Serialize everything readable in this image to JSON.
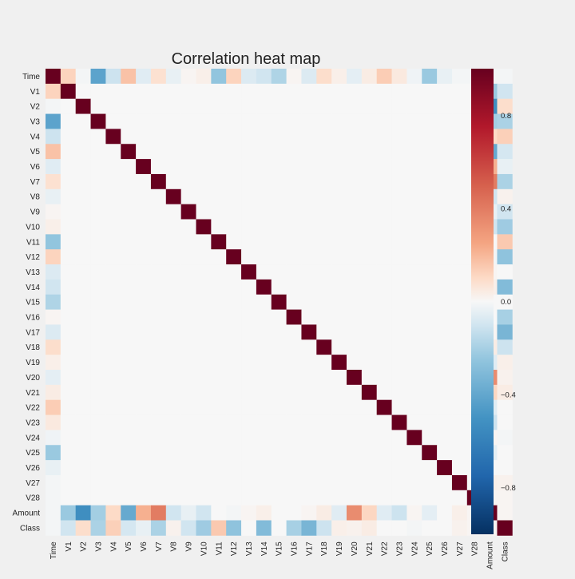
{
  "chart_data": {
    "type": "heatmap",
    "title": "Correlation heat map",
    "labels": [
      "Time",
      "V1",
      "V2",
      "V3",
      "V4",
      "V5",
      "V6",
      "V7",
      "V8",
      "V9",
      "V10",
      "V11",
      "V12",
      "V13",
      "V14",
      "V15",
      "V16",
      "V17",
      "V18",
      "V19",
      "V20",
      "V21",
      "V22",
      "V23",
      "V24",
      "V25",
      "V26",
      "V27",
      "V28",
      "Amount",
      "Class"
    ],
    "colorbar": {
      "range": [
        -1.0,
        1.0
      ],
      "ticks": [
        "0.8",
        "0.4",
        "0.0",
        "−0.4",
        "−0.8"
      ],
      "tick_values": [
        0.8,
        0.4,
        0.0,
        -0.4,
        -0.8
      ],
      "colormap": "RdBu_r"
    },
    "time_correlations": [
      1,
      0.12,
      -0.01,
      -0.42,
      -0.11,
      0.17,
      -0.06,
      0.08,
      -0.04,
      0.01,
      0.03,
      -0.25,
      0.12,
      -0.07,
      -0.1,
      -0.18,
      0.01,
      -0.07,
      0.09,
      0.03,
      -0.05,
      0.04,
      0.14,
      0.05,
      -0.02,
      -0.23,
      -0.04,
      -0.01,
      -0.01,
      -0.01,
      -0.01
    ],
    "amount_correlations": [
      -0.01,
      -0.23,
      -0.53,
      -0.21,
      0.1,
      -0.39,
      0.22,
      0.4,
      -0.1,
      -0.04,
      -0.1,
      0.0,
      -0.01,
      0.01,
      0.03,
      -0.0,
      -0.0,
      0.01,
      0.04,
      -0.06,
      0.34,
      0.11,
      -0.06,
      -0.11,
      0.01,
      -0.05,
      -0.0,
      0.03,
      0.01,
      1,
      0.01
    ],
    "class_correlations": [
      -0.01,
      -0.1,
      0.09,
      -0.19,
      0.13,
      -0.09,
      -0.04,
      -0.19,
      0.02,
      -0.1,
      -0.22,
      0.15,
      -0.26,
      -0.0,
      -0.3,
      -0.0,
      -0.2,
      -0.33,
      -0.11,
      0.03,
      0.02,
      0.04,
      0.0,
      -0.0,
      -0.01,
      0.0,
      0.0,
      0.02,
      0.01,
      0.01,
      1
    ]
  }
}
